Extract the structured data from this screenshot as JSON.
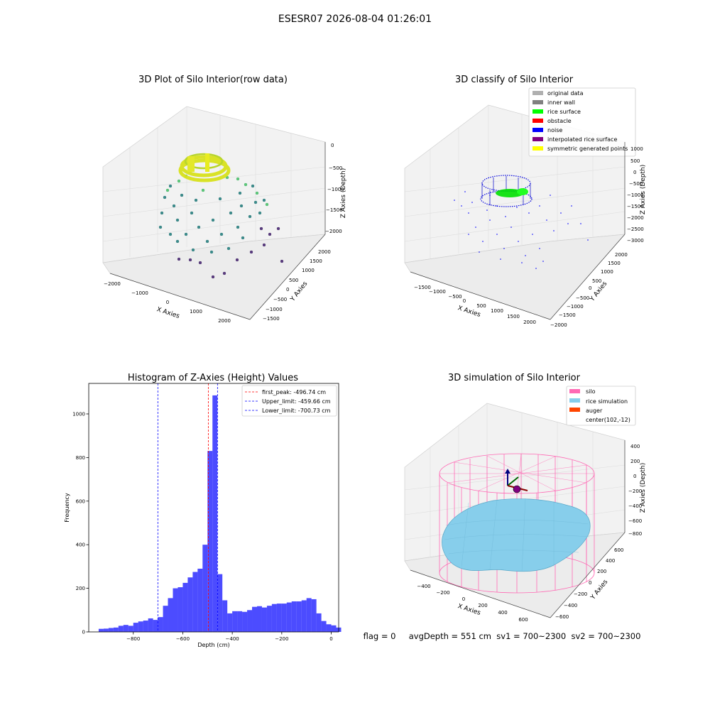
{
  "suptitle": "ESESR07 2026-08-04 01:26:01",
  "footer": "flag = 0     avgDepth = 551 cm  sv1 = 700~2300  sv2 = 700~2300",
  "chart_data": [
    {
      "type": "scatter",
      "projection": "3d",
      "title": "3D Plot of Silo Interior(row data)",
      "xlabel": "X Axies",
      "ylabel": "Y Axies",
      "zlabel": "Z Axies (Depth)",
      "xticks": [
        "−2000",
        "−1000",
        "0",
        "1000",
        "2000"
      ],
      "yticks": [
        "−1500",
        "−1000",
        "−500",
        "0",
        "500",
        "1000",
        "1500",
        "2000"
      ],
      "zticks": [
        "0",
        "−500",
        "−1000",
        "−1500",
        "−2000"
      ],
      "colormap": "viridis (by depth)",
      "legend": "none"
    },
    {
      "type": "scatter",
      "projection": "3d",
      "title": "3D classify of Silo Interior",
      "xlabel": "X Axies",
      "ylabel": "Y Axies",
      "zlabel": "Z Axies (Depth)",
      "xticks": [
        "−1500",
        "−1000",
        "−500",
        "0",
        "500",
        "1000",
        "1500",
        "2000"
      ],
      "yticks": [
        "−2000",
        "−1500",
        "−1000",
        "−500",
        "0",
        "500",
        "1000",
        "1500",
        "2000"
      ],
      "zticks": [
        "1000",
        "500",
        "0",
        "−500",
        "−1000",
        "−1500",
        "−2000",
        "−2500",
        "−3000"
      ],
      "legend_position": "top-right",
      "legend": [
        {
          "label": "original data",
          "color": "#b0b0b0"
        },
        {
          "label": "inner wall",
          "color": "#808080"
        },
        {
          "label": "rice surface",
          "color": "#00ff00"
        },
        {
          "label": "obstacle",
          "color": "#ff0000"
        },
        {
          "label": "noise",
          "color": "#0000ff"
        },
        {
          "label": "interpolated rice surface",
          "color": "#800080"
        },
        {
          "label": "symmetric generated points",
          "color": "#ffff00"
        }
      ]
    },
    {
      "type": "bar",
      "title": "Histogram of Z-Axies (Height) Values",
      "xlabel": "Depth (cm)",
      "ylabel": "Frequency",
      "xlim": [
        -980,
        30
      ],
      "ylim": [
        0,
        1140
      ],
      "xticks": [
        -800,
        -600,
        -400,
        -200,
        0
      ],
      "xtick_labels": [
        "−800",
        "−600",
        "−400",
        "−200",
        "0"
      ],
      "yticks": [
        0,
        200,
        400,
        600,
        800,
        1000
      ],
      "bar_color": "#0000ff",
      "bin_width": 20,
      "bins_start": -940,
      "values": [
        14,
        15,
        18,
        20,
        28,
        32,
        28,
        42,
        48,
        52,
        62,
        55,
        68,
        120,
        155,
        200,
        205,
        225,
        250,
        275,
        290,
        400,
        830,
        1085,
        265,
        145,
        85,
        95,
        95,
        92,
        100,
        115,
        118,
        112,
        120,
        128,
        130,
        130,
        135,
        140,
        140,
        145,
        155,
        150,
        85,
        50,
        35,
        30,
        20
      ],
      "vlines": [
        {
          "label": "first_peak: -496.74 cm",
          "x": -496.74,
          "color": "#ff0000"
        },
        {
          "label": "Upper_limit: -459.66 cm",
          "x": -459.66,
          "color": "#0000ff"
        },
        {
          "label": "Lower_limit: -700.73 cm",
          "x": -700.73,
          "color": "#0000ff"
        }
      ],
      "legend_position": "top-right"
    },
    {
      "type": "surface",
      "projection": "3d",
      "title": "3D simulation of Silo Interior",
      "xlabel": "X Axies",
      "ylabel": "Y Axies",
      "zlabel": "Z Axies (Depth)",
      "xticks": [
        "−400",
        "−200",
        "0",
        "200",
        "400",
        "600"
      ],
      "yticks": [
        "−600",
        "−400",
        "−200",
        "0",
        "200",
        "400",
        "600"
      ],
      "zticks": [
        "400",
        "200",
        "0",
        "−200",
        "−400",
        "−600",
        "−800"
      ],
      "legend_position": "top-right",
      "legend": [
        {
          "label": "silo",
          "color": "#ff69b4"
        },
        {
          "label": "rice simulation",
          "color": "#87ceeb"
        },
        {
          "label": "auger",
          "color": "#ff4500"
        },
        {
          "label": "center(102,-12)",
          "color": "none"
        }
      ]
    }
  ]
}
